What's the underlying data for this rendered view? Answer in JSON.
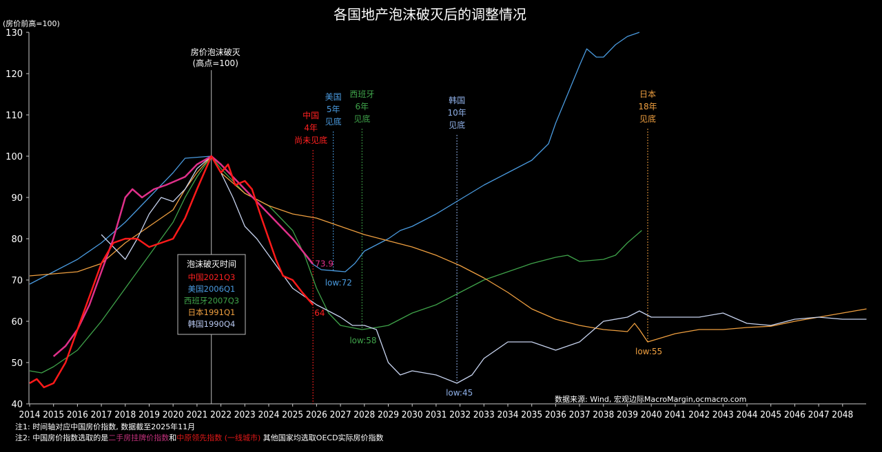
{
  "chart_data": {
    "type": "line",
    "title": "各国地产泡沫破灭后的调整情况",
    "ylabel": "(房价前高=100)",
    "ylim": [
      40,
      130
    ],
    "yticks": [
      40,
      50,
      60,
      70,
      80,
      90,
      100,
      110,
      120,
      130
    ],
    "xlim": [
      2014,
      2049
    ],
    "xticks": [
      "2014",
      "2015",
      "2016",
      "2017",
      "2018",
      "2019",
      "2020",
      "2021",
      "2022",
      "2023",
      "2024",
      "2025",
      "2026",
      "2027",
      "2028",
      "2029",
      "2030",
      "2031",
      "2032",
      "2033",
      "2034",
      "2035",
      "2036",
      "2037",
      "2038",
      "2039",
      "2040",
      "2041",
      "2042",
      "2043",
      "2044",
      "2045",
      "2046",
      "2047",
      "2048"
    ],
    "grid": false,
    "series": [
      {
        "key": "us",
        "color": "#4a9be0",
        "width": 1.3,
        "points": [
          [
            2014,
            69
          ],
          [
            2015,
            72
          ],
          [
            2016,
            75
          ],
          [
            2017,
            79
          ],
          [
            2018,
            84
          ],
          [
            2019,
            90
          ],
          [
            2020,
            96
          ],
          [
            2020.5,
            99.5
          ],
          [
            2021.6,
            100
          ],
          [
            2022,
            98
          ],
          [
            2023,
            92
          ],
          [
            2024,
            86
          ],
          [
            2025,
            80
          ],
          [
            2025.8,
            74
          ],
          [
            2026.2,
            72.5
          ],
          [
            2026.8,
            72.2
          ],
          [
            2027.2,
            72
          ],
          [
            2027.6,
            74
          ],
          [
            2028,
            77
          ],
          [
            2029,
            80
          ],
          [
            2029.5,
            82
          ],
          [
            2030,
            83
          ],
          [
            2031,
            86
          ],
          [
            2032,
            89.5
          ],
          [
            2033,
            93
          ],
          [
            2034,
            96
          ],
          [
            2035,
            99
          ],
          [
            2035.7,
            103
          ],
          [
            2036,
            108
          ],
          [
            2036.5,
            115
          ],
          [
            2037,
            122
          ],
          [
            2037.3,
            126
          ],
          [
            2037.7,
            124
          ],
          [
            2038,
            124
          ],
          [
            2038.5,
            127
          ],
          [
            2039,
            129
          ],
          [
            2039.5,
            130
          ]
        ]
      },
      {
        "key": "spain",
        "color": "#3fa34a",
        "width": 1.3,
        "points": [
          [
            2014,
            48
          ],
          [
            2014.5,
            47.5
          ],
          [
            2015,
            49
          ],
          [
            2016,
            53
          ],
          [
            2017,
            60
          ],
          [
            2018,
            68
          ],
          [
            2019,
            76
          ],
          [
            2020,
            84
          ],
          [
            2020.5,
            90
          ],
          [
            2021,
            95
          ],
          [
            2021.6,
            100
          ],
          [
            2022,
            97
          ],
          [
            2023,
            91
          ],
          [
            2024,
            88
          ],
          [
            2025,
            82
          ],
          [
            2025.5,
            76
          ],
          [
            2026,
            68
          ],
          [
            2026.5,
            62
          ],
          [
            2027,
            59
          ],
          [
            2027.9,
            58
          ],
          [
            2028.5,
            58.5
          ],
          [
            2029,
            59
          ],
          [
            2030,
            62
          ],
          [
            2031,
            64
          ],
          [
            2032,
            67
          ],
          [
            2033,
            70
          ],
          [
            2034,
            72
          ],
          [
            2035,
            74
          ],
          [
            2036,
            75.5
          ],
          [
            2036.5,
            76
          ],
          [
            2037,
            74.5
          ],
          [
            2038,
            75
          ],
          [
            2038.5,
            76
          ],
          [
            2039,
            79
          ],
          [
            2039.6,
            82
          ]
        ]
      },
      {
        "key": "japan",
        "color": "#f0a040",
        "width": 1.3,
        "points": [
          [
            2014,
            71
          ],
          [
            2016,
            72
          ],
          [
            2017,
            74
          ],
          [
            2018,
            79
          ],
          [
            2019,
            83
          ],
          [
            2020,
            87
          ],
          [
            2020.5,
            92
          ],
          [
            2021,
            96
          ],
          [
            2021.6,
            100
          ],
          [
            2022,
            96
          ],
          [
            2023,
            91
          ],
          [
            2024,
            88
          ],
          [
            2025,
            86
          ],
          [
            2026,
            85
          ],
          [
            2027,
            83
          ],
          [
            2028,
            81
          ],
          [
            2029,
            79.5
          ],
          [
            2030,
            78
          ],
          [
            2031,
            76
          ],
          [
            2032,
            73.5
          ],
          [
            2033,
            70.5
          ],
          [
            2034,
            67
          ],
          [
            2035,
            63
          ],
          [
            2036,
            60.5
          ],
          [
            2037,
            59
          ],
          [
            2038,
            58
          ],
          [
            2039,
            57.5
          ],
          [
            2039.3,
            59.5
          ],
          [
            2039.5,
            58
          ],
          [
            2039.85,
            55
          ],
          [
            2041,
            57
          ],
          [
            2042,
            58
          ],
          [
            2043,
            58
          ],
          [
            2044,
            58.5
          ],
          [
            2045,
            58.8
          ],
          [
            2046,
            60
          ],
          [
            2047,
            61
          ],
          [
            2048,
            62
          ],
          [
            2049,
            63
          ]
        ]
      },
      {
        "key": "korea",
        "color": "#c8d4f0",
        "width": 1.3,
        "points": [
          [
            2017,
            81
          ],
          [
            2017.5,
            78
          ],
          [
            2018,
            75
          ],
          [
            2018.5,
            80
          ],
          [
            2019,
            86
          ],
          [
            2019.5,
            90
          ],
          [
            2020,
            89
          ],
          [
            2020.5,
            92
          ],
          [
            2021,
            97
          ],
          [
            2021.6,
            100
          ],
          [
            2022,
            96
          ],
          [
            2022.5,
            90
          ],
          [
            2023,
            83
          ],
          [
            2023.5,
            80
          ],
          [
            2024,
            76
          ],
          [
            2025,
            68
          ],
          [
            2026,
            64
          ],
          [
            2027,
            61
          ],
          [
            2027.5,
            59
          ],
          [
            2028,
            59
          ],
          [
            2028.5,
            58
          ],
          [
            2029,
            50
          ],
          [
            2029.5,
            47
          ],
          [
            2030,
            48
          ],
          [
            2031,
            47
          ],
          [
            2031.87,
            45
          ],
          [
            2032.5,
            47
          ],
          [
            2033,
            51
          ],
          [
            2034,
            55
          ],
          [
            2035,
            55
          ],
          [
            2036,
            53
          ],
          [
            2037,
            55
          ],
          [
            2037.6,
            58
          ],
          [
            2038,
            60
          ],
          [
            2039,
            61
          ],
          [
            2039.5,
            62.5
          ],
          [
            2040,
            61
          ],
          [
            2041,
            61
          ],
          [
            2042,
            61
          ],
          [
            2043,
            62
          ],
          [
            2044,
            59.5
          ],
          [
            2045,
            59
          ],
          [
            2046,
            60.5
          ],
          [
            2047,
            61
          ],
          [
            2048,
            60.5
          ],
          [
            2049,
            60.5
          ]
        ]
      },
      {
        "key": "china_listing",
        "color": "#e0308a",
        "width": 2.5,
        "points": [
          [
            2015,
            51.5
          ],
          [
            2015.5,
            54
          ],
          [
            2016,
            58
          ],
          [
            2016.5,
            64
          ],
          [
            2017,
            72
          ],
          [
            2017.5,
            80
          ],
          [
            2018,
            90
          ],
          [
            2018.3,
            92
          ],
          [
            2018.7,
            90
          ],
          [
            2019.2,
            92
          ],
          [
            2019.7,
            93
          ],
          [
            2020.5,
            95
          ],
          [
            2021,
            98
          ],
          [
            2021.6,
            100
          ],
          [
            2022,
            98
          ],
          [
            2023,
            92
          ],
          [
            2024,
            86
          ],
          [
            2025,
            80
          ],
          [
            2025.85,
            73.9
          ]
        ]
      },
      {
        "key": "china_centaline",
        "color": "#ff1a1a",
        "width": 2.5,
        "points": [
          [
            2014,
            45
          ],
          [
            2014.3,
            46
          ],
          [
            2014.6,
            44
          ],
          [
            2015,
            45
          ],
          [
            2015.5,
            50
          ],
          [
            2016,
            58
          ],
          [
            2016.5,
            66
          ],
          [
            2017,
            74
          ],
          [
            2017.5,
            79
          ],
          [
            2018,
            80
          ],
          [
            2018.5,
            80
          ],
          [
            2019,
            78
          ],
          [
            2019.5,
            79
          ],
          [
            2020,
            80
          ],
          [
            2020.5,
            85
          ],
          [
            2021,
            92
          ],
          [
            2021.6,
            100
          ],
          [
            2022,
            96
          ],
          [
            2022.3,
            98
          ],
          [
            2022.6,
            93
          ],
          [
            2023,
            94
          ],
          [
            2023.3,
            92
          ],
          [
            2023.7,
            85
          ],
          [
            2024,
            80
          ],
          [
            2024.3,
            75
          ],
          [
            2024.6,
            71
          ],
          [
            2025,
            70
          ],
          [
            2025.4,
            67
          ],
          [
            2025.85,
            64
          ]
        ]
      }
    ],
    "peak_marker": {
      "x": 2021.6,
      "label_line1": "房价泡沫破灭",
      "label_line2": "(高点=100)"
    },
    "bottom_markers": [
      {
        "x": 2025.85,
        "color": "#ff2020",
        "lines": [
          "中国",
          "4年",
          "尚未见底"
        ]
      },
      {
        "x": 2026.7,
        "color": "#4a9be0",
        "lines": [
          "美国",
          "5年",
          "见底"
        ]
      },
      {
        "x": 2027.9,
        "color": "#3fa34a",
        "lines": [
          "西班牙",
          "6年",
          "见底"
        ]
      },
      {
        "x": 2031.87,
        "color": "#8fb0e8",
        "lines": [
          "韩国",
          "10年",
          "见底"
        ]
      },
      {
        "x": 2039.85,
        "color": "#f0a040",
        "lines": [
          "日本",
          "18年",
          "见底"
        ]
      }
    ],
    "point_labels": [
      {
        "text": "73.9",
        "x": 2025.85,
        "y": 73.9,
        "color": "#e0308a"
      },
      {
        "text": "64",
        "x": 2025.85,
        "y": 64,
        "color": "#ff2020"
      },
      {
        "text": "low:72",
        "x": 2026.7,
        "y": 72,
        "color": "#4a9be0"
      },
      {
        "text": "low:58",
        "x": 2027.9,
        "y": 58,
        "color": "#3fa34a"
      },
      {
        "text": "low:45",
        "x": 2031.87,
        "y": 45,
        "color": "#8fb0e8"
      },
      {
        "text": "low:55",
        "x": 2039.85,
        "y": 55,
        "color": "#f0a040"
      }
    ],
    "legend": {
      "title": "泡沫破灭时间",
      "placement": "center-left",
      "entries": [
        {
          "text": "中国2021Q3",
          "color": "#ff2020"
        },
        {
          "text": "美国2006Q1",
          "color": "#4a9be0"
        },
        {
          "text": "西班牙2007Q3",
          "color": "#3fa34a"
        },
        {
          "text": "日本1991Q1",
          "color": "#f0a040"
        },
        {
          "text": "韩国1990Q4",
          "color": "#b8c8f0"
        }
      ]
    }
  },
  "source": "数据来源: Wind, 宏观边际MacroMargin,ocmacro.com",
  "notes": {
    "note1": "注1: 时间轴对应中国房价指数, 数据截至2025年11月",
    "note2_prefix": "注2: 中国房价指数选取的是",
    "note2_pink": "二手房挂牌价指数",
    "note2_and": "和",
    "note2_red": "中原领先指数 (一线城市)",
    "note2_suffix": " 其他国家均选取OECD实际房价指数",
    "pink_color": "#c0307a",
    "red_color": "#e01818"
  }
}
